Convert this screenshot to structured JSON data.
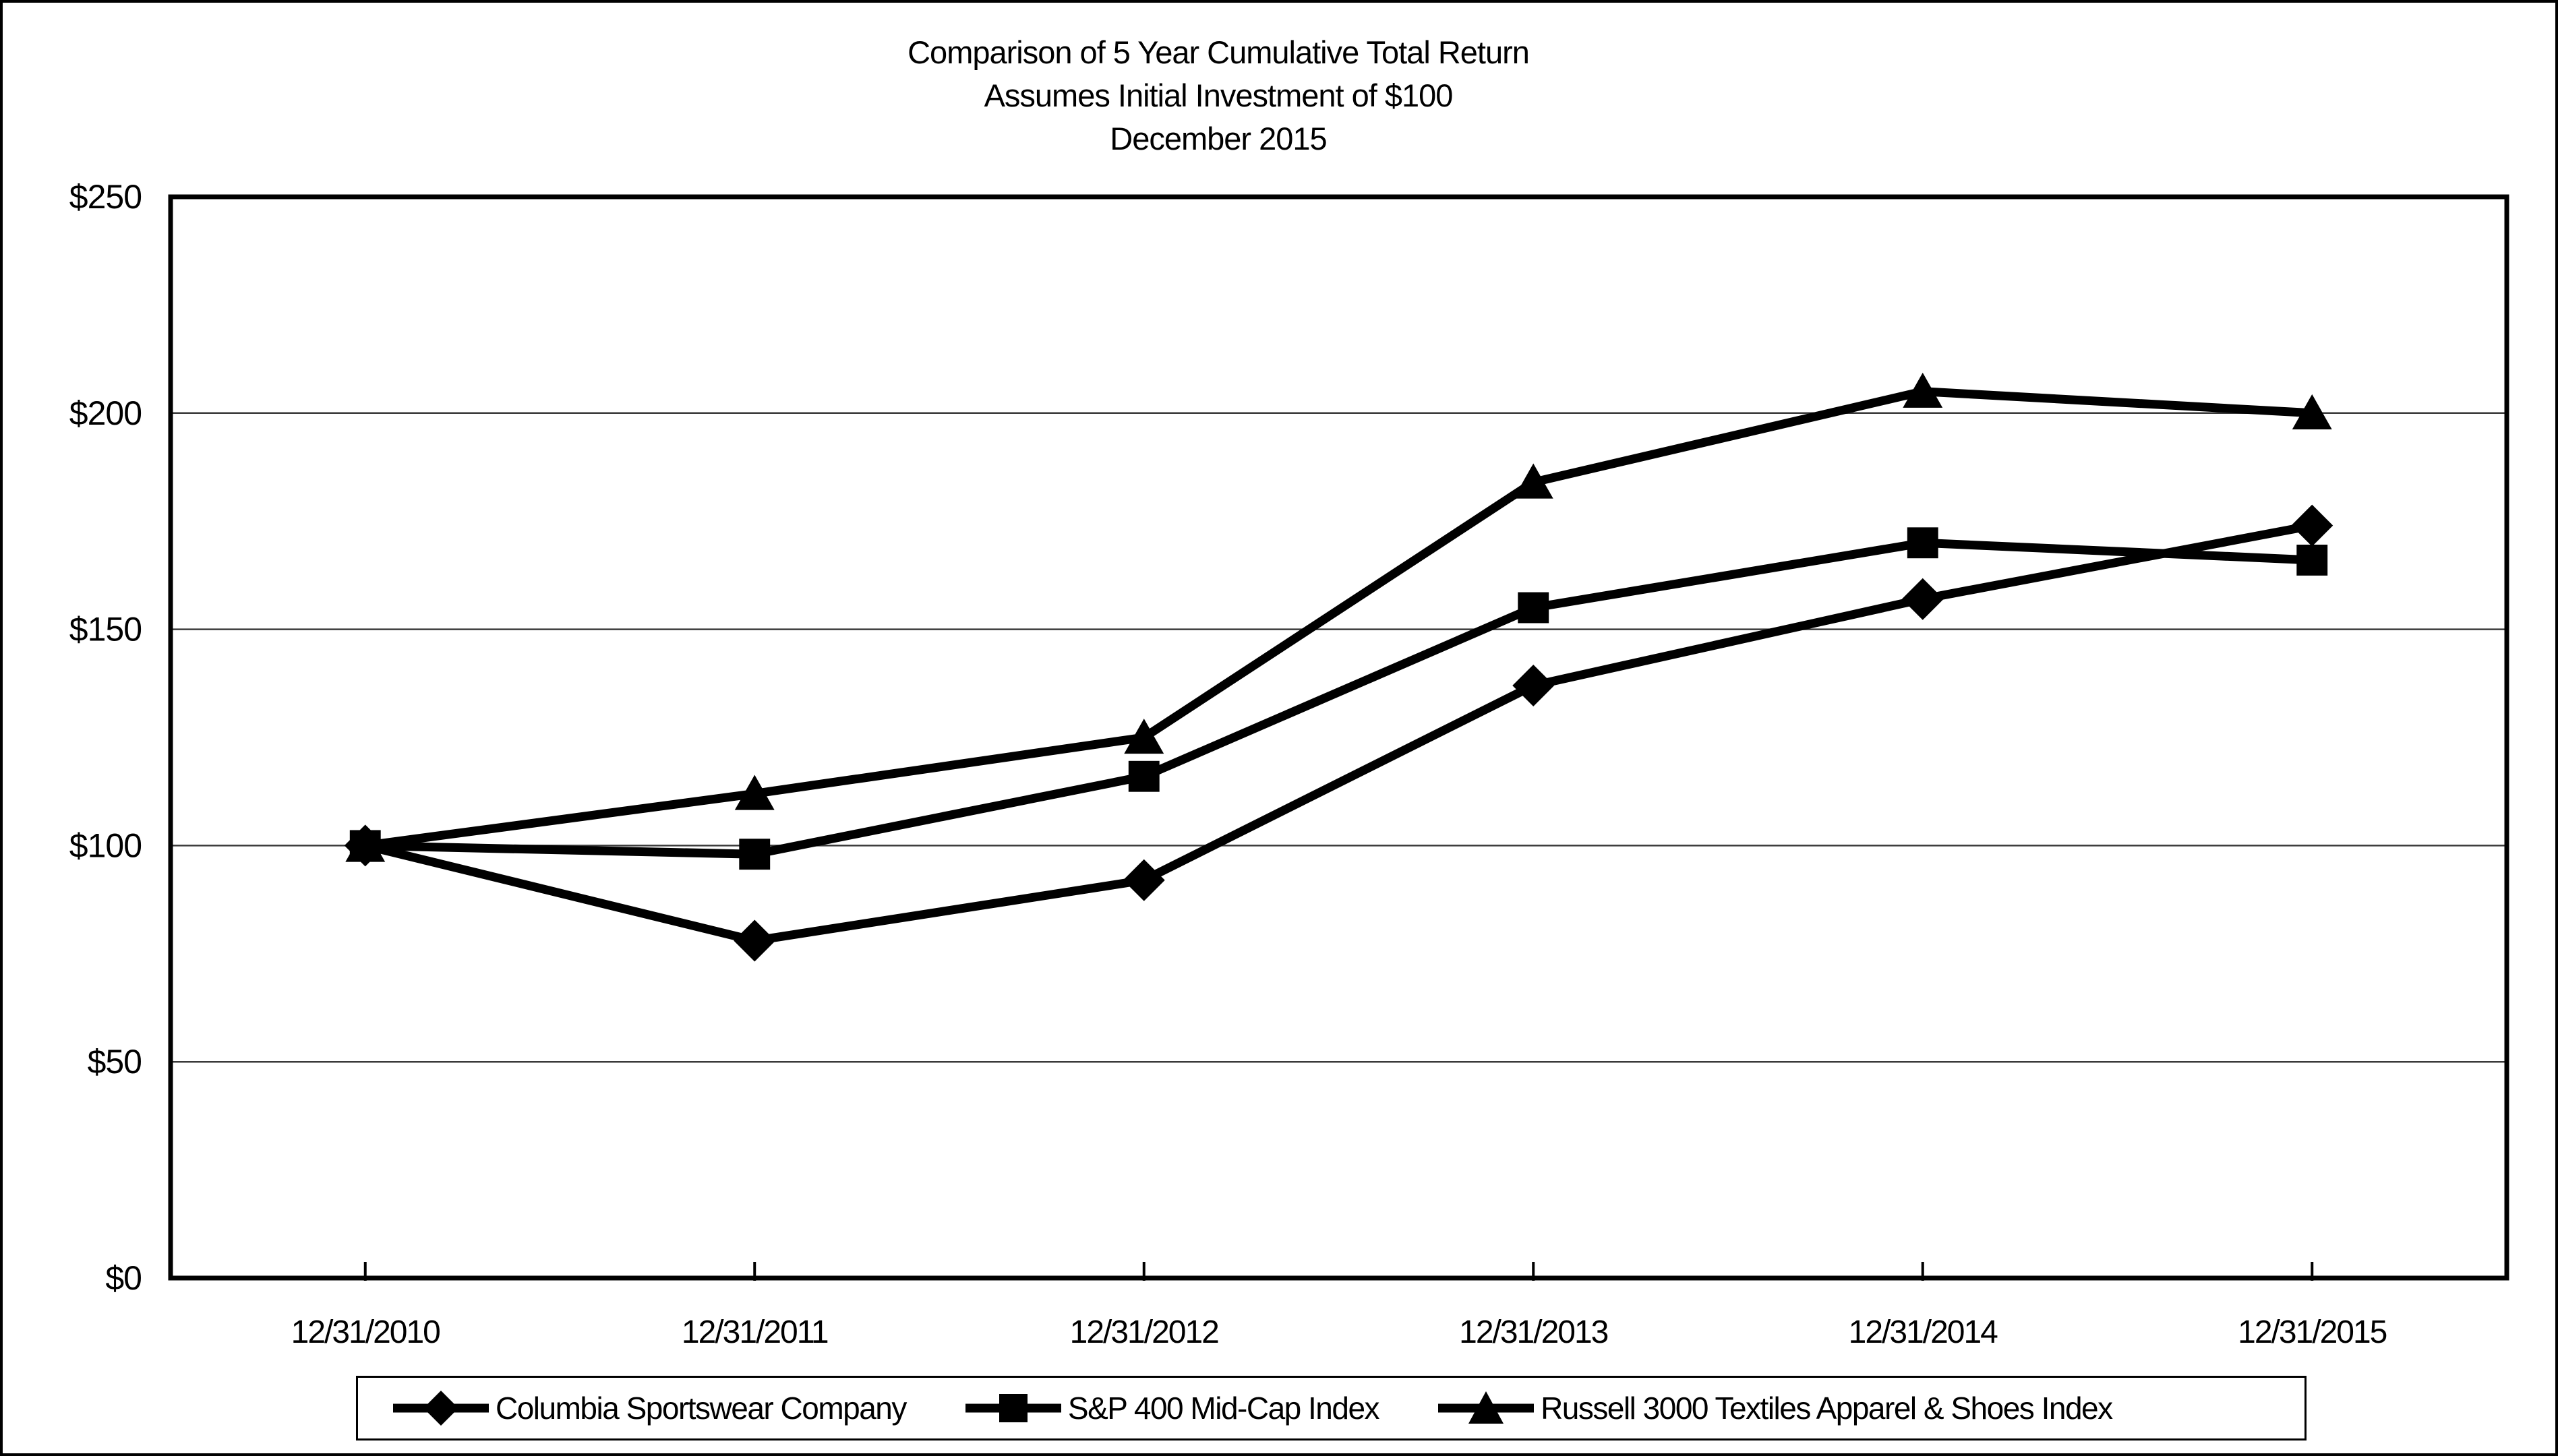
{
  "chart_data": {
    "type": "line",
    "title": "Comparison of 5 Year Cumulative Total Return",
    "subtitle": "Assumes Initial Investment of $100",
    "subtitle2": "December 2015",
    "x_categories": [
      "12/31/2010",
      "12/31/2011",
      "12/31/2012",
      "12/31/2013",
      "12/31/2014",
      "12/31/2015"
    ],
    "series": [
      {
        "name": "Columbia Sportswear Company",
        "marker": "diamond",
        "values": [
          100,
          78,
          92,
          137,
          157,
          174
        ]
      },
      {
        "name": "S&P 400 Mid-Cap Index",
        "marker": "square",
        "values": [
          100,
          98,
          116,
          155,
          170,
          166
        ]
      },
      {
        "name": "Russell 3000 Textiles Apparel & Shoes Index",
        "marker": "triangle",
        "values": [
          100,
          112,
          125,
          184,
          205,
          200
        ]
      }
    ],
    "ylim": [
      0,
      250
    ],
    "ytick_step": 50,
    "ytick_labels": [
      "$0",
      "$50",
      "$100",
      "$150",
      "$200",
      "$250"
    ],
    "xlabel": "",
    "ylabel": "",
    "grid": true,
    "gridline_values": [
      50,
      100,
      150,
      200
    ],
    "legend_position": "bottom",
    "series_color": "#000000",
    "grid_color": "#3a3a3a",
    "background": "#ffffff"
  }
}
